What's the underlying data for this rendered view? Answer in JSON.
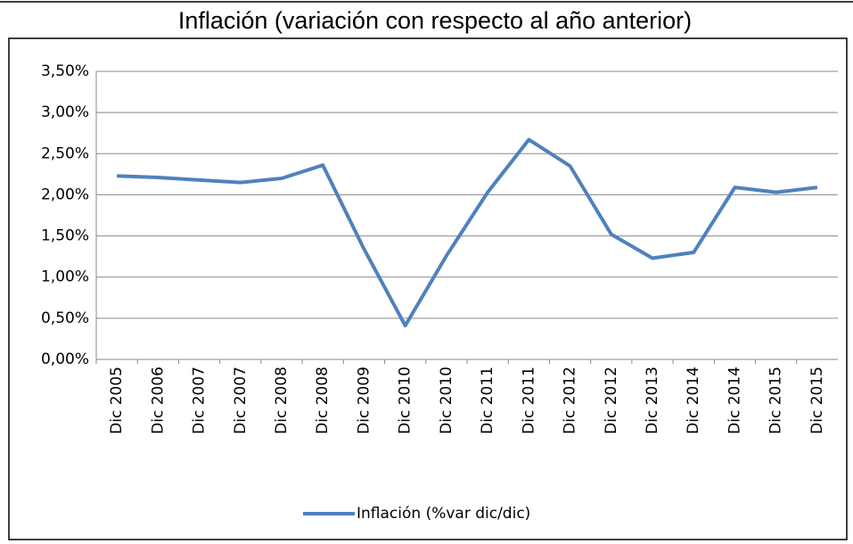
{
  "chart_data": {
    "type": "line",
    "title": "Inflación (variación con respecto al año anterior)",
    "categories": [
      "Dic 2005",
      "Dic 2006",
      "Dic 2007",
      "Dic 2007",
      "Dic 2008",
      "Dic 2008",
      "Dic 2009",
      "Dic 2010",
      "Dic 2010",
      "Dic 2011",
      "Dic 2011",
      "Dic 2012",
      "Dic 2012",
      "Dic 2013",
      "Dic 2014",
      "Dic 2014",
      "Dic 2015",
      "Dic 2015"
    ],
    "series": [
      {
        "name": "Inflación (%var dic/dic)",
        "color": "#4f81bd",
        "values": [
          2.23,
          2.21,
          2.18,
          2.15,
          2.2,
          2.36,
          1.34,
          0.41,
          1.26,
          2.03,
          2.67,
          2.35,
          1.52,
          1.23,
          1.3,
          2.09,
          2.03,
          2.09
        ]
      }
    ],
    "ylim": [
      0,
      3.5
    ],
    "yticks": [
      {
        "value": 0,
        "label": "0,00%"
      },
      {
        "value": 0.5,
        "label": "0,50%"
      },
      {
        "value": 1,
        "label": "1,00%"
      },
      {
        "value": 1.5,
        "label": "1,50%"
      },
      {
        "value": 2,
        "label": "2,00%"
      },
      {
        "value": 2.5,
        "label": "2,50%"
      },
      {
        "value": 3,
        "label": "3,00%"
      },
      {
        "value": 3.5,
        "label": "3,50%"
      }
    ],
    "grid": true,
    "legend": "bottom"
  }
}
